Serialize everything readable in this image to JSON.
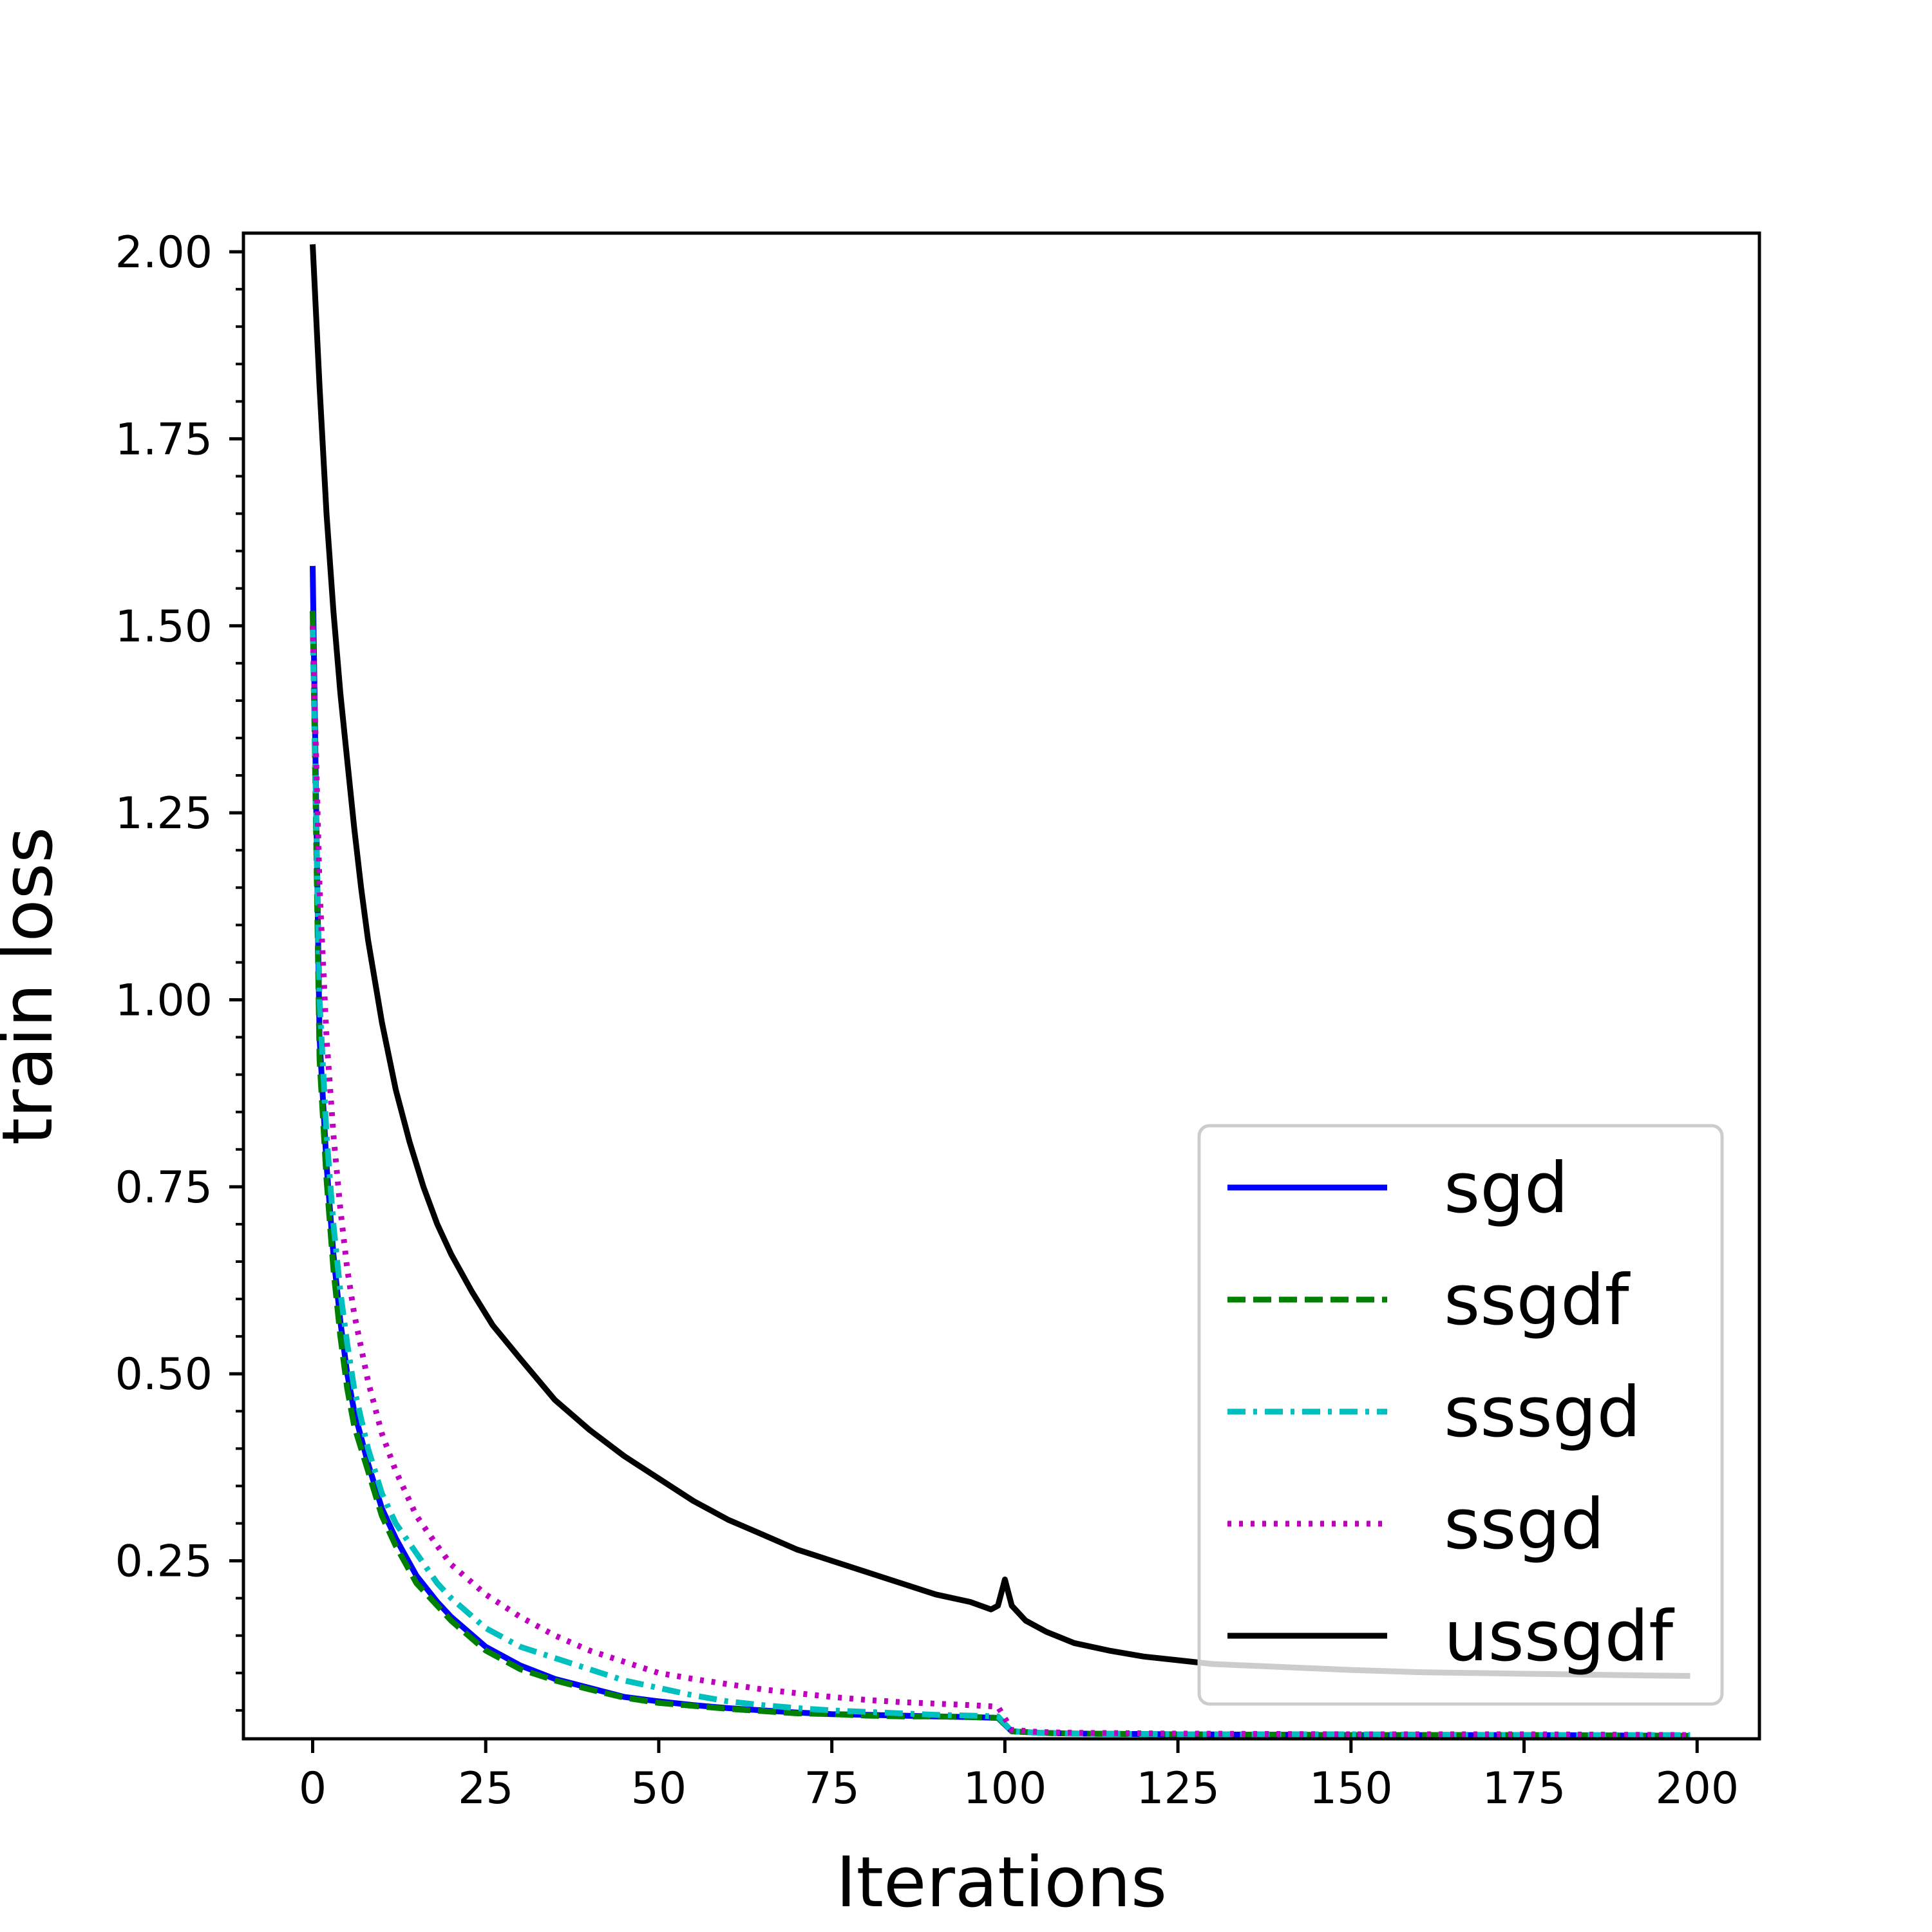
{
  "chart_data": {
    "type": "line",
    "title": "",
    "xlabel": "Iterations",
    "ylabel": "train loss",
    "xlim": [
      -10,
      209
    ],
    "ylim": [
      0.012,
      2.025
    ],
    "xticks": [
      0,
      25,
      50,
      75,
      100,
      125,
      150,
      175,
      200
    ],
    "yticks": [
      0.25,
      0.5,
      0.75,
      1.0,
      1.25,
      1.5,
      1.75,
      2.0
    ],
    "ytick_labels": [
      "0.25",
      "0.50",
      "0.75",
      "1.00",
      "1.25",
      "1.50",
      "1.75",
      "2.00"
    ],
    "legend_position": "lower-right",
    "grid": false,
    "series": [
      {
        "name": "sgd",
        "color": "#0000ff",
        "style": "solid",
        "points": [
          [
            0,
            1.58
          ],
          [
            1,
            0.95
          ],
          [
            2,
            0.78
          ],
          [
            3,
            0.66
          ],
          [
            4,
            0.57
          ],
          [
            5,
            0.5
          ],
          [
            6,
            0.45
          ],
          [
            8,
            0.38
          ],
          [
            10,
            0.32
          ],
          [
            12,
            0.28
          ],
          [
            15,
            0.23
          ],
          [
            18,
            0.195
          ],
          [
            20,
            0.175
          ],
          [
            25,
            0.135
          ],
          [
            30,
            0.11
          ],
          [
            35,
            0.092
          ],
          [
            40,
            0.08
          ],
          [
            45,
            0.068
          ],
          [
            50,
            0.062
          ],
          [
            55,
            0.057
          ],
          [
            60,
            0.053
          ],
          [
            65,
            0.05
          ],
          [
            70,
            0.047
          ],
          [
            75,
            0.045
          ],
          [
            80,
            0.044
          ],
          [
            85,
            0.043
          ],
          [
            90,
            0.042
          ],
          [
            95,
            0.041
          ],
          [
            99,
            0.04
          ],
          [
            101,
            0.022
          ],
          [
            105,
            0.02
          ],
          [
            110,
            0.019
          ],
          [
            125,
            0.018
          ],
          [
            150,
            0.017
          ],
          [
            175,
            0.017
          ],
          [
            199,
            0.016
          ]
        ]
      },
      {
        "name": "ssgdf",
        "color": "#008000",
        "style": "dashed",
        "points": [
          [
            0,
            1.52
          ],
          [
            1,
            0.92
          ],
          [
            2,
            0.76
          ],
          [
            3,
            0.64
          ],
          [
            4,
            0.55
          ],
          [
            5,
            0.48
          ],
          [
            6,
            0.43
          ],
          [
            8,
            0.37
          ],
          [
            10,
            0.31
          ],
          [
            12,
            0.27
          ],
          [
            15,
            0.22
          ],
          [
            18,
            0.19
          ],
          [
            20,
            0.17
          ],
          [
            25,
            0.13
          ],
          [
            30,
            0.105
          ],
          [
            35,
            0.09
          ],
          [
            40,
            0.078
          ],
          [
            45,
            0.067
          ],
          [
            50,
            0.06
          ],
          [
            55,
            0.056
          ],
          [
            60,
            0.052
          ],
          [
            65,
            0.049
          ],
          [
            70,
            0.046
          ],
          [
            75,
            0.045
          ],
          [
            80,
            0.043
          ],
          [
            85,
            0.042
          ],
          [
            90,
            0.042
          ],
          [
            95,
            0.041
          ],
          [
            99,
            0.04
          ],
          [
            101,
            0.022
          ],
          [
            105,
            0.02
          ],
          [
            110,
            0.019
          ],
          [
            125,
            0.018
          ],
          [
            150,
            0.017
          ],
          [
            175,
            0.017
          ],
          [
            199,
            0.016
          ]
        ]
      },
      {
        "name": "sssgd",
        "color": "#00bfbf",
        "style": "dashdot",
        "points": [
          [
            0,
            1.5
          ],
          [
            1,
            1.0
          ],
          [
            2,
            0.82
          ],
          [
            3,
            0.7
          ],
          [
            4,
            0.61
          ],
          [
            5,
            0.54
          ],
          [
            6,
            0.48
          ],
          [
            8,
            0.4
          ],
          [
            10,
            0.34
          ],
          [
            12,
            0.3
          ],
          [
            15,
            0.26
          ],
          [
            18,
            0.22
          ],
          [
            20,
            0.2
          ],
          [
            25,
            0.16
          ],
          [
            30,
            0.135
          ],
          [
            35,
            0.12
          ],
          [
            40,
            0.105
          ],
          [
            45,
            0.09
          ],
          [
            50,
            0.08
          ],
          [
            55,
            0.07
          ],
          [
            60,
            0.062
          ],
          [
            65,
            0.057
          ],
          [
            70,
            0.053
          ],
          [
            75,
            0.05
          ],
          [
            80,
            0.048
          ],
          [
            85,
            0.046
          ],
          [
            90,
            0.044
          ],
          [
            95,
            0.043
          ],
          [
            99,
            0.042
          ],
          [
            101,
            0.022
          ],
          [
            105,
            0.02
          ],
          [
            110,
            0.019
          ],
          [
            125,
            0.018
          ],
          [
            150,
            0.018
          ],
          [
            175,
            0.017
          ],
          [
            199,
            0.017
          ]
        ]
      },
      {
        "name": "ssgd",
        "color": "#bf00bf",
        "style": "dotted",
        "points": [
          [
            0,
            1.5
          ],
          [
            1,
            1.15
          ],
          [
            2,
            0.95
          ],
          [
            3,
            0.82
          ],
          [
            4,
            0.72
          ],
          [
            5,
            0.64
          ],
          [
            6,
            0.58
          ],
          [
            8,
            0.49
          ],
          [
            10,
            0.42
          ],
          [
            12,
            0.37
          ],
          [
            15,
            0.31
          ],
          [
            18,
            0.27
          ],
          [
            20,
            0.245
          ],
          [
            25,
            0.205
          ],
          [
            30,
            0.175
          ],
          [
            35,
            0.15
          ],
          [
            40,
            0.13
          ],
          [
            45,
            0.115
          ],
          [
            50,
            0.1
          ],
          [
            55,
            0.092
          ],
          [
            60,
            0.085
          ],
          [
            65,
            0.078
          ],
          [
            70,
            0.073
          ],
          [
            75,
            0.068
          ],
          [
            80,
            0.064
          ],
          [
            85,
            0.061
          ],
          [
            90,
            0.059
          ],
          [
            95,
            0.057
          ],
          [
            99,
            0.055
          ],
          [
            101,
            0.024
          ],
          [
            105,
            0.021
          ],
          [
            110,
            0.02
          ],
          [
            125,
            0.019
          ],
          [
            150,
            0.018
          ],
          [
            175,
            0.018
          ],
          [
            199,
            0.017
          ]
        ]
      },
      {
        "name": "ussgdf",
        "color": "#000000",
        "style": "solid",
        "points": [
          [
            0,
            2.01
          ],
          [
            1,
            1.82
          ],
          [
            2,
            1.65
          ],
          [
            3,
            1.52
          ],
          [
            4,
            1.41
          ],
          [
            5,
            1.32
          ],
          [
            6,
            1.23
          ],
          [
            7,
            1.15
          ],
          [
            8,
            1.08
          ],
          [
            10,
            0.97
          ],
          [
            12,
            0.88
          ],
          [
            14,
            0.81
          ],
          [
            16,
            0.75
          ],
          [
            18,
            0.7
          ],
          [
            20,
            0.66
          ],
          [
            23,
            0.61
          ],
          [
            26,
            0.565
          ],
          [
            30,
            0.52
          ],
          [
            35,
            0.465
          ],
          [
            40,
            0.425
          ],
          [
            45,
            0.39
          ],
          [
            50,
            0.36
          ],
          [
            55,
            0.33
          ],
          [
            60,
            0.305
          ],
          [
            65,
            0.285
          ],
          [
            70,
            0.265
          ],
          [
            75,
            0.25
          ],
          [
            80,
            0.235
          ],
          [
            85,
            0.22
          ],
          [
            90,
            0.205
          ],
          [
            95,
            0.195
          ],
          [
            98,
            0.185
          ],
          [
            99,
            0.19
          ],
          [
            100,
            0.225
          ],
          [
            101,
            0.19
          ],
          [
            103,
            0.17
          ],
          [
            106,
            0.155
          ],
          [
            110,
            0.14
          ],
          [
            115,
            0.13
          ],
          [
            120,
            0.122
          ],
          [
            125,
            0.117
          ],
          [
            130,
            0.112
          ],
          [
            140,
            0.108
          ],
          [
            150,
            0.104
          ],
          [
            160,
            0.101
          ],
          [
            175,
            0.099
          ],
          [
            190,
            0.097
          ],
          [
            199,
            0.096
          ]
        ]
      }
    ]
  }
}
